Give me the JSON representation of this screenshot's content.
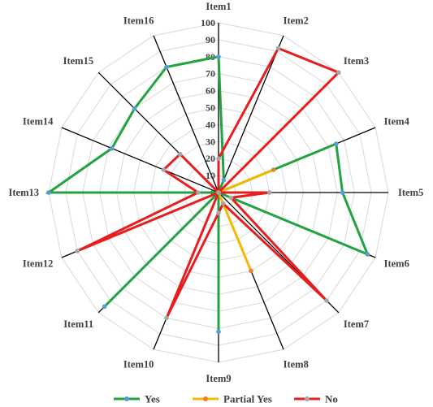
{
  "chart_data": {
    "type": "radar",
    "categories": [
      "Item1",
      "Item2",
      "Item3",
      "Item4",
      "Item5",
      "Item6",
      "Item7",
      "Item8",
      "Item9",
      "Item10",
      "Item11",
      "Item12",
      "Item13",
      "Item14",
      "Item15",
      "Item16"
    ],
    "rlim": [
      0,
      100
    ],
    "ticks": [
      "0",
      "10",
      "20",
      "30",
      "40",
      "50",
      "60",
      "70",
      "80",
      "90",
      "100"
    ],
    "grid": true,
    "legend_position": "bottom",
    "series": [
      {
        "name": "Yes",
        "color": "#22a340",
        "values": [
          80,
          8,
          0,
          75,
          73,
          95,
          0,
          0,
          82,
          0,
          95,
          0,
          100,
          68,
          70,
          80
        ]
      },
      {
        "name": "Partial Yes",
        "color": "#f5b800",
        "values": [
          0,
          0,
          0,
          35,
          0,
          0,
          0,
          50,
          0,
          0,
          0,
          0,
          0,
          0,
          0,
          0
        ]
      },
      {
        "name": "No",
        "color": "#e81e1e",
        "values": [
          20,
          92,
          100,
          0,
          30,
          8,
          90,
          7,
          12,
          80,
          0,
          90,
          12,
          35,
          32,
          0
        ]
      }
    ]
  }
}
